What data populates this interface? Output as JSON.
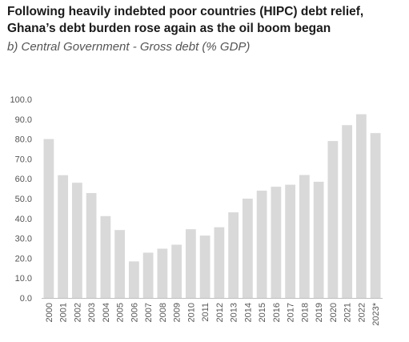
{
  "header": {
    "title": "Following heavily indebted poor countries (HIPC) debt relief, Ghana’s debt burden rose again as the oil boom began",
    "subtitle": "b) Central Government - Gross debt (% GDP)"
  },
  "chart_data": {
    "type": "bar",
    "title": "Following heavily indebted poor countries (HIPC) debt relief, Ghana’s debt burden rose again as the oil boom began",
    "subtitle": "b) Central Government - Gross debt (% GDP)",
    "xlabel": "",
    "ylabel": "",
    "ylim": [
      0,
      100
    ],
    "yticks": [
      "0.0",
      "10.0",
      "20.0",
      "30.0",
      "40.0",
      "50.0",
      "60.0",
      "70.0",
      "80.0",
      "90.0",
      "100.0"
    ],
    "categories": [
      "2000",
      "2001",
      "2002",
      "2003",
      "2004",
      "2005",
      "2006",
      "2007",
      "2008",
      "2009",
      "2010",
      "2011",
      "2012",
      "2013",
      "2014",
      "2015",
      "2016",
      "2017",
      "2018",
      "2019",
      "2020",
      "2021",
      "2022",
      "2023*"
    ],
    "values": [
      80.0,
      61.8,
      58.0,
      52.8,
      41.2,
      34.2,
      18.4,
      22.8,
      24.8,
      26.8,
      34.6,
      31.4,
      35.6,
      43.1,
      50.0,
      54.0,
      56.0,
      57.0,
      61.9,
      58.5,
      79.0,
      87.0,
      92.5,
      83.0
    ],
    "bar_color": "#d9d9d9",
    "grid": false,
    "legend": "none"
  }
}
